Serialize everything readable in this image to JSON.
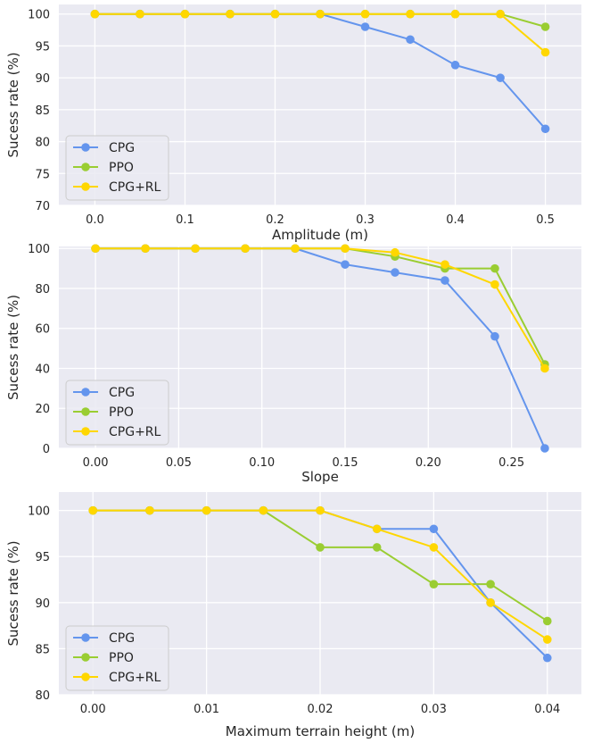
{
  "colors": {
    "CPG": "#6495ED",
    "PPO": "#9ACD32",
    "CPG+RL": "#FFD700",
    "plot_bg": "#EAEAF2",
    "grid": "#FFFFFF"
  },
  "chart_data": [
    {
      "type": "line",
      "title": "",
      "xlabel": "Amplitude (m)",
      "ylabel": "Sucess rate (%)",
      "x": [
        0.0,
        0.05,
        0.1,
        0.15,
        0.2,
        0.25,
        0.3,
        0.35,
        0.4,
        0.45,
        0.5
      ],
      "xlim": [
        -0.04,
        0.54
      ],
      "ylim": [
        70,
        101.5
      ],
      "xticks": [
        0.0,
        0.1,
        0.2,
        0.3,
        0.4,
        0.5
      ],
      "xtick_labels": [
        "0.0",
        "0.1",
        "0.2",
        "0.3",
        "0.4",
        "0.5"
      ],
      "yticks": [
        70,
        75,
        80,
        85,
        90,
        95,
        100
      ],
      "ytick_labels": [
        "70",
        "75",
        "80",
        "85",
        "90",
        "95",
        "100"
      ],
      "legend_position": "lower-left",
      "series": [
        {
          "name": "CPG",
          "values": [
            100,
            100,
            100,
            100,
            100,
            100,
            98,
            96,
            92,
            90,
            82
          ]
        },
        {
          "name": "PPO",
          "values": [
            100,
            100,
            100,
            100,
            100,
            100,
            100,
            100,
            100,
            100,
            98
          ]
        },
        {
          "name": "CPG+RL",
          "values": [
            100,
            100,
            100,
            100,
            100,
            100,
            100,
            100,
            100,
            100,
            94
          ]
        }
      ]
    },
    {
      "type": "line",
      "title": "",
      "xlabel": "Slope",
      "ylabel": "Sucess rate (%)",
      "x": [
        0.0,
        0.03,
        0.06,
        0.09,
        0.12,
        0.15,
        0.18,
        0.21,
        0.24,
        0.27
      ],
      "xlim": [
        -0.022,
        0.292
      ],
      "ylim": [
        0,
        101
      ],
      "xticks": [
        0.0,
        0.05,
        0.1,
        0.15,
        0.2,
        0.25
      ],
      "xtick_labels": [
        "0.00",
        "0.05",
        "0.10",
        "0.15",
        "0.20",
        "0.25"
      ],
      "yticks": [
        0,
        20,
        40,
        60,
        80,
        100
      ],
      "ytick_labels": [
        "0",
        "20",
        "40",
        "60",
        "80",
        "100"
      ],
      "legend_position": "lower-left",
      "series": [
        {
          "name": "CPG",
          "values": [
            100,
            100,
            100,
            100,
            100,
            92,
            88,
            84,
            56,
            0
          ]
        },
        {
          "name": "PPO",
          "values": [
            100,
            100,
            100,
            100,
            100,
            100,
            96,
            90,
            90,
            42
          ]
        },
        {
          "name": "CPG+RL",
          "values": [
            100,
            100,
            100,
            100,
            100,
            100,
            98,
            92,
            82,
            40
          ]
        }
      ]
    },
    {
      "type": "line",
      "title": "",
      "xlabel": "Maximum terrain height (m)",
      "ylabel": "Sucess rate (%)",
      "x": [
        0.0,
        0.005,
        0.01,
        0.015,
        0.02,
        0.025,
        0.03,
        0.035,
        0.04
      ],
      "xlim": [
        -0.003,
        0.043
      ],
      "ylim": [
        80,
        102
      ],
      "xticks": [
        0.0,
        0.01,
        0.02,
        0.03,
        0.04
      ],
      "xtick_labels": [
        "0.00",
        "0.01",
        "0.02",
        "0.03",
        "0.04"
      ],
      "yticks": [
        80,
        85,
        90,
        95,
        100
      ],
      "ytick_labels": [
        "80",
        "85",
        "90",
        "95",
        "100"
      ],
      "legend_position": "lower-left",
      "series": [
        {
          "name": "CPG",
          "values": [
            100,
            100,
            100,
            100,
            100,
            98,
            98,
            90,
            84
          ]
        },
        {
          "name": "PPO",
          "values": [
            100,
            100,
            100,
            100,
            96,
            96,
            92,
            92,
            88
          ]
        },
        {
          "name": "CPG+RL",
          "values": [
            100,
            100,
            100,
            100,
            100,
            98,
            96,
            90,
            86
          ]
        }
      ]
    }
  ]
}
